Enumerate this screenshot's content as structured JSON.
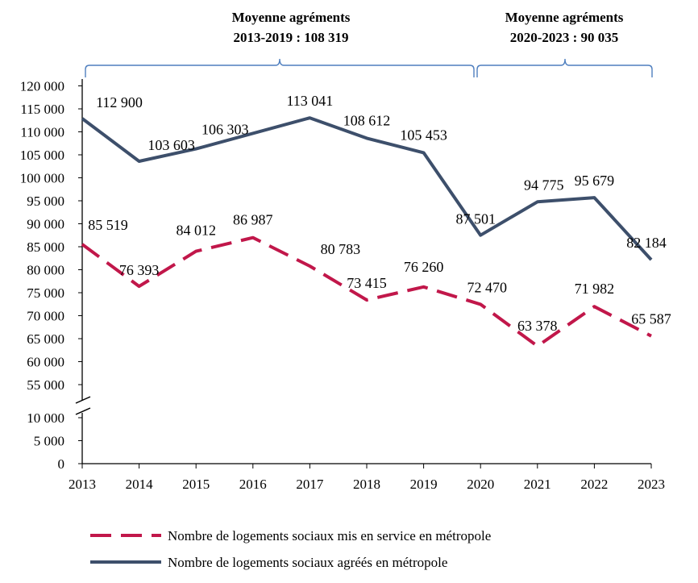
{
  "annotations": [
    {
      "line1": "Moyenne agréments",
      "line2": "2013-2019 :  108 319"
    },
    {
      "line1": "Moyenne agréments",
      "line2": "2020-2023 : 90 035"
    }
  ],
  "chart_data": {
    "type": "line",
    "title": "",
    "xlabel": "",
    "ylabel": "",
    "x": [
      "2013",
      "2014",
      "2015",
      "2016",
      "2017",
      "2018",
      "2019",
      "2020",
      "2021",
      "2022",
      "2023"
    ],
    "axis_break": {
      "from": 10000,
      "to": 55000
    },
    "yticks": [
      "0",
      "5 000",
      "10 000",
      "55 000",
      "60 000",
      "65 000",
      "70 000",
      "75 000",
      "80 000",
      "85 000",
      "90 000",
      "95 000",
      "100 000",
      "105 000",
      "110 000",
      "115 000",
      "120 000"
    ],
    "ylim": [
      0,
      120000
    ],
    "series": [
      {
        "name": "Nombre de logements sociaux agréés en métropole",
        "color": "#3d4f6b",
        "style": "solid",
        "values": [
          112900,
          103603,
          106303,
          null,
          113041,
          108612,
          105453,
          87501,
          94775,
          95679,
          82184
        ],
        "labels": [
          "112 900",
          "103 603",
          "106 303",
          null,
          "113 041",
          "108 612",
          "105 453",
          "87 501",
          "94 775",
          "95 679",
          "82 184"
        ]
      },
      {
        "name": "Nombre de logements sociaux mis en service en métropole",
        "color": "#c1174a",
        "style": "dashed",
        "values": [
          85519,
          76393,
          84012,
          86987,
          80783,
          73415,
          76260,
          72470,
          63378,
          71982,
          65587
        ],
        "labels": [
          "85 519",
          "76 393",
          "84 012",
          "86 987",
          "80 783",
          "73 415",
          "76 260",
          "72 470",
          "63 378",
          "71 982",
          "65 587"
        ]
      }
    ],
    "legend": {
      "position": "bottom",
      "items": [
        "Nombre de logements sociaux mis en service en métropole",
        "Nombre de logements sociaux agréés en métropole"
      ]
    },
    "grid": false
  }
}
